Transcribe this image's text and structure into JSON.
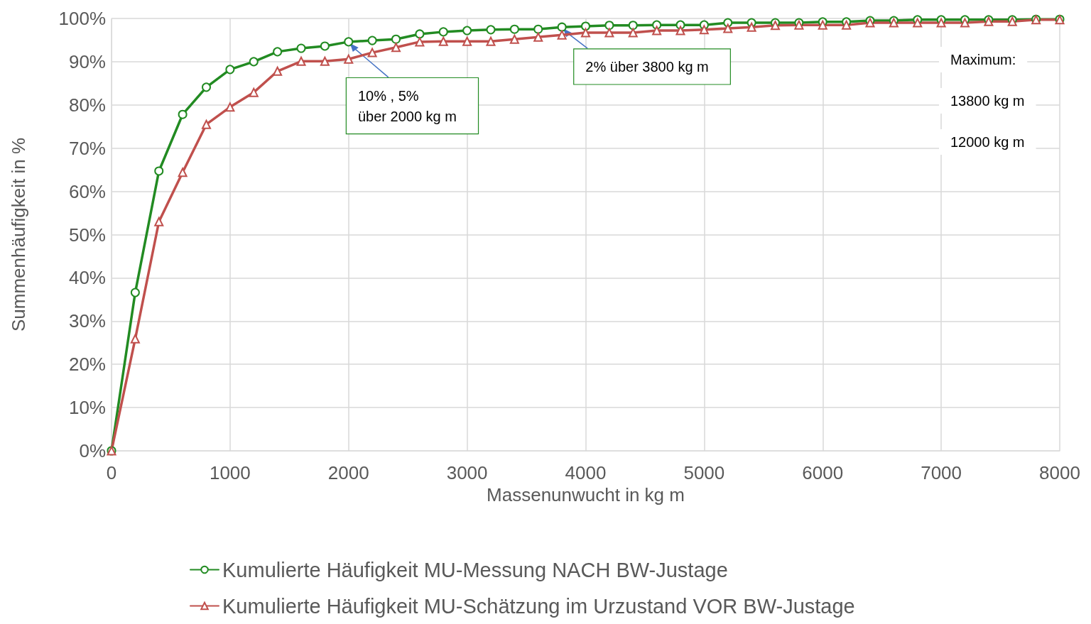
{
  "chart_data": {
    "type": "line",
    "xlabel": "Massenunwucht in kg m",
    "ylabel": "Summenhäufigkeit in %",
    "x": [
      0,
      200,
      400,
      600,
      800,
      1000,
      1200,
      1400,
      1600,
      1800,
      2000,
      2200,
      2400,
      2600,
      2800,
      3000,
      3200,
      3400,
      3600,
      3800,
      4000,
      4200,
      4400,
      4600,
      4800,
      5000,
      5200,
      5400,
      5600,
      5800,
      6000,
      6200,
      6400,
      6600,
      6800,
      7000,
      7200,
      7400,
      7600,
      7800,
      8000
    ],
    "series": [
      {
        "name": "Kumulierte Häufigkeit MU-Messung NACH BW-Justage",
        "color": "#228b22",
        "marker": "circle",
        "values": [
          0,
          36.6,
          64.7,
          77.8,
          84.1,
          88.2,
          90.0,
          92.3,
          93.1,
          93.6,
          94.6,
          94.9,
          95.2,
          96.4,
          96.9,
          97.2,
          97.4,
          97.5,
          97.5,
          98.0,
          98.2,
          98.4,
          98.4,
          98.5,
          98.5,
          98.5,
          99.0,
          99.0,
          99.0,
          99.0,
          99.2,
          99.2,
          99.5,
          99.5,
          99.7,
          99.7,
          99.7,
          99.7,
          99.7,
          99.8,
          99.8
        ]
      },
      {
        "name": "Kumulierte Häufigkeit MU-Schätzung im Urzustand VOR BW-Justage",
        "color": "#c0504d",
        "marker": "triangle",
        "values": [
          0,
          25.9,
          53.0,
          64.4,
          75.5,
          79.5,
          82.9,
          87.8,
          90.1,
          90.1,
          90.6,
          92.1,
          93.3,
          94.6,
          94.7,
          94.7,
          94.7,
          95.2,
          95.7,
          96.2,
          96.7,
          96.7,
          96.7,
          97.2,
          97.2,
          97.4,
          97.7,
          98.0,
          98.4,
          98.5,
          98.5,
          98.5,
          99.0,
          99.0,
          99.0,
          99.0,
          99.0,
          99.3,
          99.3,
          99.7,
          99.7
        ]
      }
    ],
    "xlim": [
      0,
      8000
    ],
    "xticks": [
      0,
      1000,
      2000,
      3000,
      4000,
      5000,
      6000,
      7000,
      8000
    ],
    "ylim": [
      0,
      100
    ],
    "yticks": [
      {
        "value": 0,
        "label": "0%"
      },
      {
        "value": 10,
        "label": "10%"
      },
      {
        "value": 20,
        "label": "20%"
      },
      {
        "value": 30,
        "label": "30%"
      },
      {
        "value": 40,
        "label": "40%"
      },
      {
        "value": 50,
        "label": "50%"
      },
      {
        "value": 60,
        "label": "60%"
      },
      {
        "value": 70,
        "label": "70%"
      },
      {
        "value": 80,
        "label": "80%"
      },
      {
        "value": 90,
        "label": "90%"
      },
      {
        "value": 100,
        "label": "100%"
      }
    ],
    "annotations": [
      {
        "text": "10% , 5%\nüber 2000 kg m",
        "x": 2000,
        "y": 94.6
      },
      {
        "text": "2% über 3800 kg m",
        "x": 3800,
        "y": 98.0
      },
      "Maximum:",
      "13800 kg m",
      "12000 kg m"
    ],
    "grid": true,
    "legend": "bottom",
    "line_style": "solid"
  }
}
